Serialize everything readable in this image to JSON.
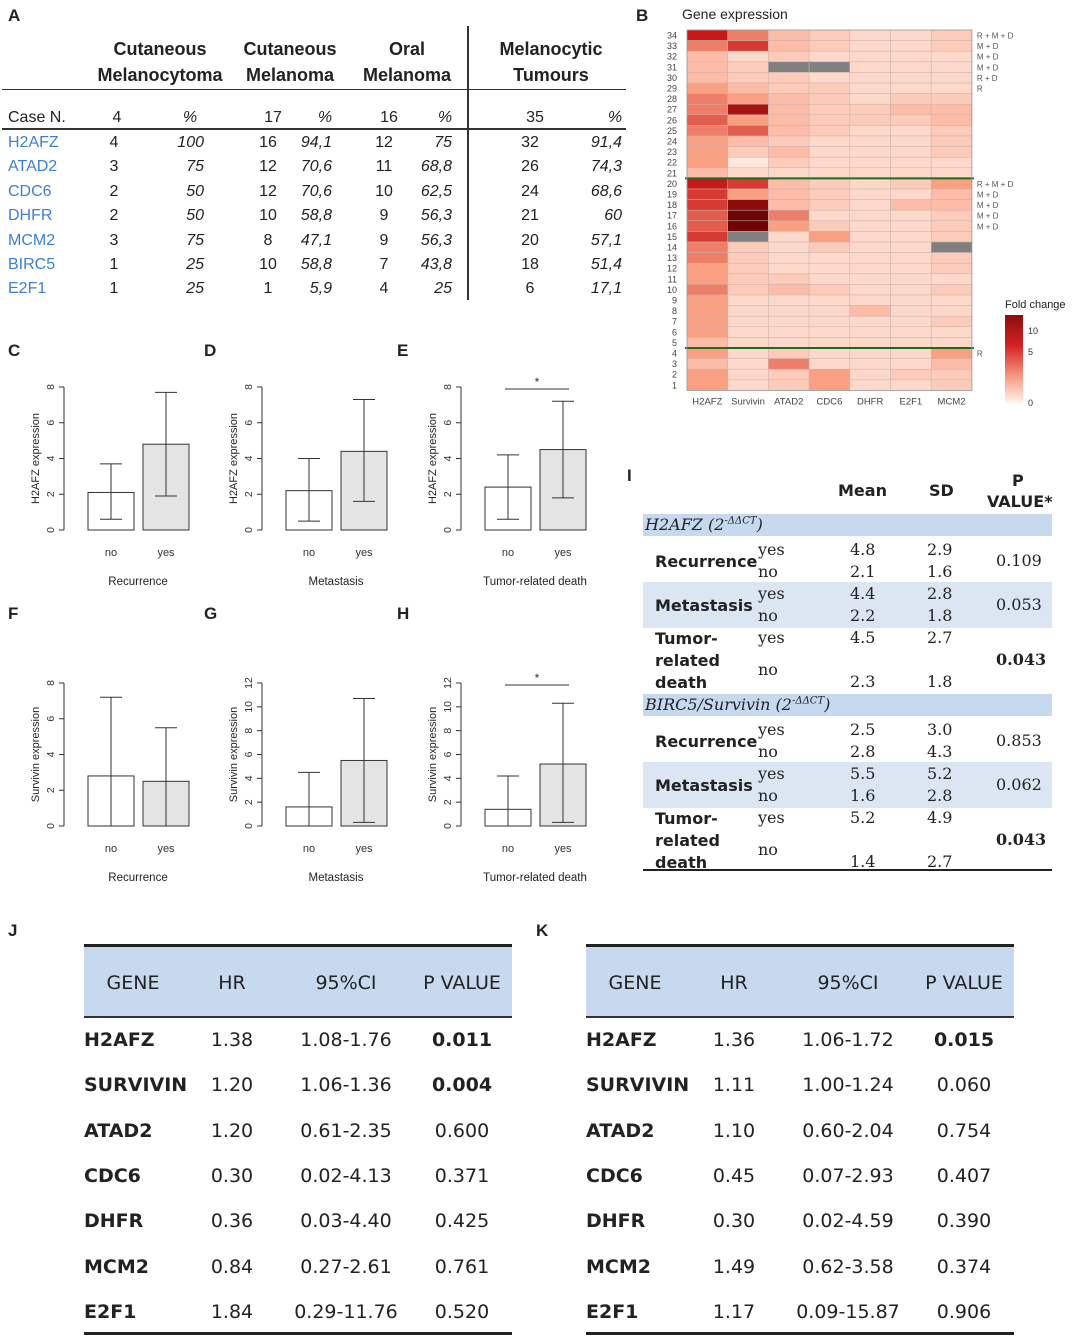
{
  "panels": {
    "A": "A",
    "B": "B",
    "C": "C",
    "D": "D",
    "E": "E",
    "F": "F",
    "G": "G",
    "H": "H",
    "I": "I",
    "J": "J",
    "K": "K"
  },
  "tableA": {
    "groups": [
      {
        "l1": "Cutaneous",
        "l2": "Melanocytoma"
      },
      {
        "l1": "Cutaneous",
        "l2": "Melanoma"
      },
      {
        "l1": "Oral",
        "l2": "Melanoma"
      },
      {
        "l1": "Melanocytic",
        "l2": "Tumours"
      }
    ],
    "head": [
      "Case N.",
      "4",
      "%",
      "17",
      "%",
      "16",
      "%",
      "35",
      "%"
    ],
    "rows": [
      [
        "H2AFZ",
        "4",
        "100",
        "16",
        "94,1",
        "12",
        "75",
        "32",
        "91,4"
      ],
      [
        "ATAD2",
        "3",
        "75",
        "12",
        "70,6",
        "11",
        "68,8",
        "26",
        "74,3"
      ],
      [
        "CDC6",
        "2",
        "50",
        "12",
        "70,6",
        "10",
        "62,5",
        "24",
        "68,6"
      ],
      [
        "DHFR",
        "2",
        "50",
        "10",
        "58,8",
        "9",
        "56,3",
        "21",
        "60"
      ],
      [
        "MCM2",
        "3",
        "75",
        "8",
        "47,1",
        "9",
        "56,3",
        "20",
        "57,1"
      ],
      [
        "BIRC5",
        "1",
        "25",
        "10",
        "58,8",
        "7",
        "43,8",
        "18",
        "51,4"
      ],
      [
        "E2F1",
        "1",
        "25",
        "1",
        "5,9",
        "4",
        "25",
        "6",
        "17,1"
      ]
    ]
  },
  "heatmap": {
    "title": "Gene expression",
    "genes": [
      "H2AFZ",
      "Survivin",
      "ATAD2",
      "CDC6",
      "DHFR",
      "E2F1",
      "MCM2"
    ],
    "row_labels": [
      "34",
      "33",
      "32",
      "31",
      "30",
      "29",
      "28",
      "27",
      "26",
      "25",
      "24",
      "23",
      "22",
      "21",
      "20",
      "19",
      "18",
      "17",
      "16",
      "15",
      "14",
      "13",
      "12",
      "11",
      "10",
      "9",
      "8",
      "7",
      "6",
      "5",
      "4",
      "3",
      "2",
      "1"
    ],
    "side_labels": [
      {
        "row": "34",
        "text": "R + M + D"
      },
      {
        "row": "33",
        "text": "M + D"
      },
      {
        "row": "32",
        "text": "M + D"
      },
      {
        "row": "31",
        "text": "M + D"
      },
      {
        "row": "30",
        "text": "R + D"
      },
      {
        "row": "29",
        "text": "R"
      },
      {
        "row": "20",
        "text": "R + M + D"
      },
      {
        "row": "19",
        "text": "M + D"
      },
      {
        "row": "18",
        "text": "M + D"
      },
      {
        "row": "17",
        "text": "M + D"
      },
      {
        "row": "16",
        "text": "M + D"
      },
      {
        "row": "4",
        "text": "R"
      }
    ],
    "legend_title": "Fold change",
    "legend_ticks": [
      "10",
      "5",
      "0"
    ],
    "values": [
      [
        7,
        4,
        2,
        1.5,
        1,
        1,
        1.5
      ],
      [
        4,
        6,
        2,
        1.5,
        1,
        1,
        1.5
      ],
      [
        2,
        1,
        1.5,
        1,
        1,
        1,
        1
      ],
      [
        2,
        1.5,
        -1,
        -1,
        1,
        1,
        1
      ],
      [
        2,
        1.5,
        1.5,
        1,
        1,
        1,
        1
      ],
      [
        3,
        2,
        1.5,
        1.5,
        1,
        1,
        1
      ],
      [
        4,
        3,
        2,
        1.5,
        1,
        1.5,
        1.5
      ],
      [
        4,
        8,
        2,
        1.5,
        1.5,
        2,
        2
      ],
      [
        5,
        3,
        2,
        1.5,
        1.5,
        1.5,
        2
      ],
      [
        4,
        5,
        2,
        1.5,
        1,
        1,
        1.5
      ],
      [
        3,
        2,
        1.5,
        1,
        1,
        1,
        1.5
      ],
      [
        3,
        1.5,
        2,
        1,
        1,
        1,
        1.5
      ],
      [
        3,
        0.5,
        1.5,
        1,
        1,
        1,
        1
      ],
      [
        2,
        1,
        1,
        1,
        1,
        1,
        1
      ],
      [
        7,
        6,
        2,
        1.5,
        1,
        1.5,
        3
      ],
      [
        6,
        3,
        2,
        1.5,
        1,
        1,
        2
      ],
      [
        6,
        9,
        2,
        1.5,
        1,
        2,
        2
      ],
      [
        5,
        10,
        4,
        1,
        1,
        1,
        1.5
      ],
      [
        5,
        10,
        3,
        1.5,
        1,
        1,
        1.5
      ],
      [
        6,
        -1,
        1,
        3,
        1,
        1,
        1.5
      ],
      [
        4,
        1.5,
        1,
        1.5,
        1,
        1,
        -1
      ],
      [
        4,
        1.5,
        1,
        1,
        1,
        1,
        1.5
      ],
      [
        3,
        1.5,
        1,
        1,
        1,
        1,
        1.5
      ],
      [
        3,
        1.5,
        1.5,
        1,
        1,
        1,
        1
      ],
      [
        4,
        1.5,
        2,
        1.5,
        1,
        1,
        1.5
      ],
      [
        3,
        1,
        1,
        1,
        1,
        1,
        1
      ],
      [
        3,
        1,
        1,
        1,
        2,
        1,
        1
      ],
      [
        3,
        1,
        1,
        1,
        1,
        1,
        1.5
      ],
      [
        3,
        1,
        1,
        1,
        1,
        1,
        1
      ],
      [
        2,
        1,
        1,
        1,
        1,
        1,
        1
      ],
      [
        3,
        1,
        1.5,
        1,
        1,
        1,
        3
      ],
      [
        2,
        1,
        4,
        1,
        1,
        1,
        2
      ],
      [
        3,
        1,
        1.5,
        3,
        1,
        1.5,
        1.5
      ],
      [
        3,
        1,
        1.5,
        3,
        1,
        1,
        1.5
      ]
    ]
  },
  "bars": [
    {
      "id": "C",
      "ylabel": "H2AFZ expression",
      "xlabel": "Recurrence",
      "ymax": 8,
      "ticks": [
        0,
        2,
        4,
        6,
        8
      ],
      "cats": [
        "no",
        "yes"
      ],
      "means": [
        2.1,
        4.8
      ],
      "lo": [
        0.6,
        1.9
      ],
      "hi": [
        3.7,
        7.7
      ],
      "sig": ""
    },
    {
      "id": "D",
      "ylabel": "H2AFZ expression",
      "xlabel": "Metastasis",
      "ymax": 8,
      "ticks": [
        0,
        2,
        4,
        6,
        8
      ],
      "cats": [
        "no",
        "yes"
      ],
      "means": [
        2.2,
        4.4
      ],
      "lo": [
        0.5,
        1.6
      ],
      "hi": [
        4.0,
        7.3
      ],
      "sig": ""
    },
    {
      "id": "E",
      "ylabel": "H2AFZ expression",
      "xlabel": "Tumor-related death",
      "ymax": 8,
      "ticks": [
        0,
        2,
        4,
        6,
        8
      ],
      "cats": [
        "no",
        "yes"
      ],
      "means": [
        2.4,
        4.5
      ],
      "lo": [
        0.6,
        1.8
      ],
      "hi": [
        4.2,
        7.2
      ],
      "sig": "*"
    },
    {
      "id": "F",
      "ylabel": "Survivin expression",
      "xlabel": "Recurrence",
      "ymax": 8,
      "ticks": [
        0,
        2,
        4,
        6,
        8
      ],
      "cats": [
        "no",
        "yes"
      ],
      "means": [
        2.8,
        2.5
      ],
      "lo": [
        0,
        0
      ],
      "hi": [
        7.2,
        5.5
      ],
      "sig": ""
    },
    {
      "id": "G",
      "ylabel": "Survivin expression",
      "xlabel": "Metastasis",
      "ymax": 12,
      "ticks": [
        0,
        2,
        4,
        6,
        8,
        10,
        12
      ],
      "cats": [
        "no",
        "yes"
      ],
      "means": [
        1.6,
        5.5
      ],
      "lo": [
        0,
        0.3
      ],
      "hi": [
        4.5,
        10.7
      ],
      "sig": ""
    },
    {
      "id": "H",
      "ylabel": "Survivin expression",
      "xlabel": "Tumor-related death",
      "ymax": 12,
      "ticks": [
        0,
        2,
        4,
        6,
        8,
        10,
        12
      ],
      "cats": [
        "no",
        "yes"
      ],
      "means": [
        1.4,
        5.2
      ],
      "lo": [
        0,
        0.3
      ],
      "hi": [
        4.2,
        10.3
      ],
      "sig": "*"
    }
  ],
  "tableI": {
    "head": {
      "mean": "Mean",
      "sd": "SD",
      "p1": "P",
      "p2": "VALUE*"
    },
    "sections": [
      {
        "title_a": "H2AFZ (2",
        "title_sup": "-ΔΔCT",
        "title_b": ")",
        "groups": [
          {
            "label": "Recurrence",
            "rows": [
              [
                "yes",
                "4.8",
                "2.9"
              ],
              [
                "no",
                "2.1",
                "1.6"
              ]
            ],
            "p": "0.109",
            "bold": false
          },
          {
            "label": "Metastasis",
            "rows": [
              [
                "yes",
                "4.4",
                "2.8"
              ],
              [
                "no",
                "2.2",
                "1.8"
              ]
            ],
            "p": "0.053",
            "bold": false
          },
          {
            "label": "Tumor-related death",
            "rows": [
              [
                "yes",
                "4.5",
                "2.7"
              ],
              [
                "no",
                "2.3",
                "1.8"
              ]
            ],
            "p": "0.043",
            "bold": true
          }
        ]
      },
      {
        "title_a": "BIRC5/Survivin (2",
        "title_sup": "-ΔΔCT",
        "title_b": ")",
        "groups": [
          {
            "label": "Recurrence",
            "rows": [
              [
                "yes",
                "2.5",
                "3.0"
              ],
              [
                "no",
                "2.8",
                "4.3"
              ]
            ],
            "p": "0.853",
            "bold": false
          },
          {
            "label": "Metastasis",
            "rows": [
              [
                "yes",
                "5.5",
                "5.2"
              ],
              [
                "no",
                "1.6",
                "2.8"
              ]
            ],
            "p": "0.062",
            "bold": false
          },
          {
            "label": "Tumor-related death",
            "rows": [
              [
                "yes",
                "5.2",
                "4.9"
              ],
              [
                "no",
                "1.4",
                "2.7"
              ]
            ],
            "p": "0.043",
            "bold": true
          }
        ]
      }
    ]
  },
  "hr_head": [
    "GENE",
    "HR",
    "95%CI",
    "P VALUE"
  ],
  "tableJ": [
    [
      "H2AFZ",
      "1.38",
      "1.08-1.76",
      "0.011",
      true
    ],
    [
      "SURVIVIN",
      "1.20",
      "1.06-1.36",
      "0.004",
      true
    ],
    [
      "ATAD2",
      "1.20",
      "0.61-2.35",
      "0.600",
      false
    ],
    [
      "CDC6",
      "0.30",
      "0.02-4.13",
      "0.371",
      false
    ],
    [
      "DHFR",
      "0.36",
      "0.03-4.40",
      "0.425",
      false
    ],
    [
      "MCM2",
      "0.84",
      "0.27-2.61",
      "0.761",
      false
    ],
    [
      "E2F1",
      "1.84",
      "0.29-11.76",
      "0.520",
      false
    ]
  ],
  "tableK": [
    [
      "H2AFZ",
      "1.36",
      "1.06-1.72",
      "0.015",
      true
    ],
    [
      "SURVIVIN",
      "1.11",
      "1.00-1.24",
      "0.060",
      false
    ],
    [
      "ATAD2",
      "1.10",
      "0.60-2.04",
      "0.754",
      false
    ],
    [
      "CDC6",
      "0.45",
      "0.07-2.93",
      "0.407",
      false
    ],
    [
      "DHFR",
      "0.30",
      "0.02-4.59",
      "0.390",
      false
    ],
    [
      "MCM2",
      "1.49",
      "0.62-3.58",
      "0.374",
      false
    ],
    [
      "E2F1",
      "1.17",
      "0.09-15.87",
      "0.906",
      false
    ]
  ],
  "colors": {
    "gene_blue": "#3d7fd0",
    "header_fill": "#c6d9ee",
    "band_fill": "#dce6f2",
    "heat_dark": "#8b0d0d",
    "na_grey": "#808080",
    "sep_green": "#1e6b1e"
  }
}
